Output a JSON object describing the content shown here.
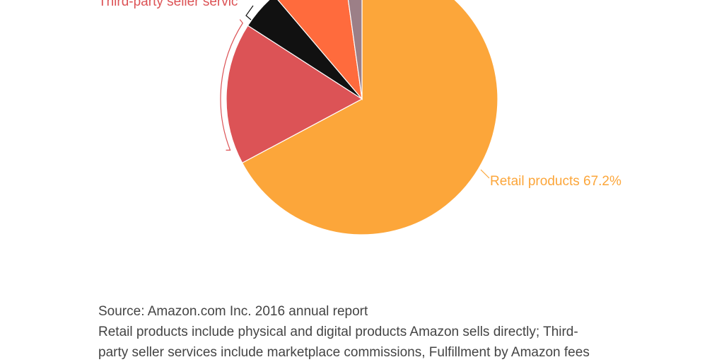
{
  "chart_data": {
    "type": "pie",
    "start_angle": "top",
    "direction": "clockwise",
    "slices": [
      {
        "name": "Retail products",
        "value": 67.2,
        "color": "#fca63a",
        "label": "Retail products 67.2%"
      },
      {
        "name": "Third-party seller services",
        "value": 16.9,
        "color": "#dc5356",
        "label": "Third-party seller servic"
      },
      {
        "name": "",
        "value": 4.7,
        "color": "#111111"
      },
      {
        "name": "",
        "value": 9.0,
        "color": "#ff6b3d"
      },
      {
        "name": "",
        "value": 2.2,
        "color": "#9c7f87"
      }
    ]
  },
  "notes": {
    "source": "Source: Amazon.com Inc. 2016 annual report",
    "line1": "Retail products include physical and digital products Amazon sells directly; Third-",
    "line2": "party seller services include marketplace commissions, Fulfillment by Amazon fees"
  }
}
